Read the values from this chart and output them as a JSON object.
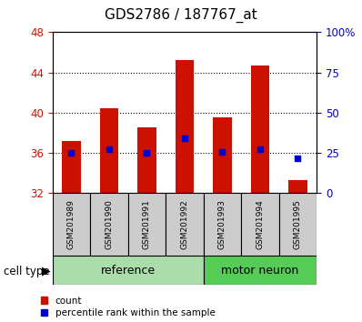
{
  "title": "GDS2786 / 187767_at",
  "samples": [
    "GSM201989",
    "GSM201990",
    "GSM201991",
    "GSM201992",
    "GSM201993",
    "GSM201994",
    "GSM201995"
  ],
  "counts": [
    37.2,
    40.4,
    38.5,
    45.2,
    39.5,
    44.7,
    33.3
  ],
  "percentile_vals": [
    36.0,
    36.35,
    36.0,
    37.5,
    36.1,
    36.35,
    35.45
  ],
  "bar_bottom": 32,
  "ylim_left": [
    32,
    48
  ],
  "ylim_right": [
    0,
    100
  ],
  "yticks_left": [
    32,
    36,
    40,
    44,
    48
  ],
  "yticks_right": [
    0,
    25,
    50,
    75,
    100
  ],
  "yticklabels_right": [
    "0",
    "25",
    "50",
    "75",
    "100%"
  ],
  "bar_color": "#cc1100",
  "marker_color": "#0000cc",
  "grid_yticks": [
    36,
    40,
    44
  ],
  "reference_label": "reference",
  "motor_neuron_label": "motor neuron",
  "cell_type_label": "cell type",
  "legend_count_label": "count",
  "legend_percentile_label": "percentile rank within the sample",
  "tick_label_color_left": "#cc1100",
  "tick_label_color_right": "#0000cc",
  "title_fontsize": 11,
  "axis_fontsize": 8.5,
  "sample_fontsize": 6.5,
  "group_fontsize": 9,
  "ref_color": "#aaddaa",
  "mn_color": "#55cc55",
  "bar_width": 0.5
}
